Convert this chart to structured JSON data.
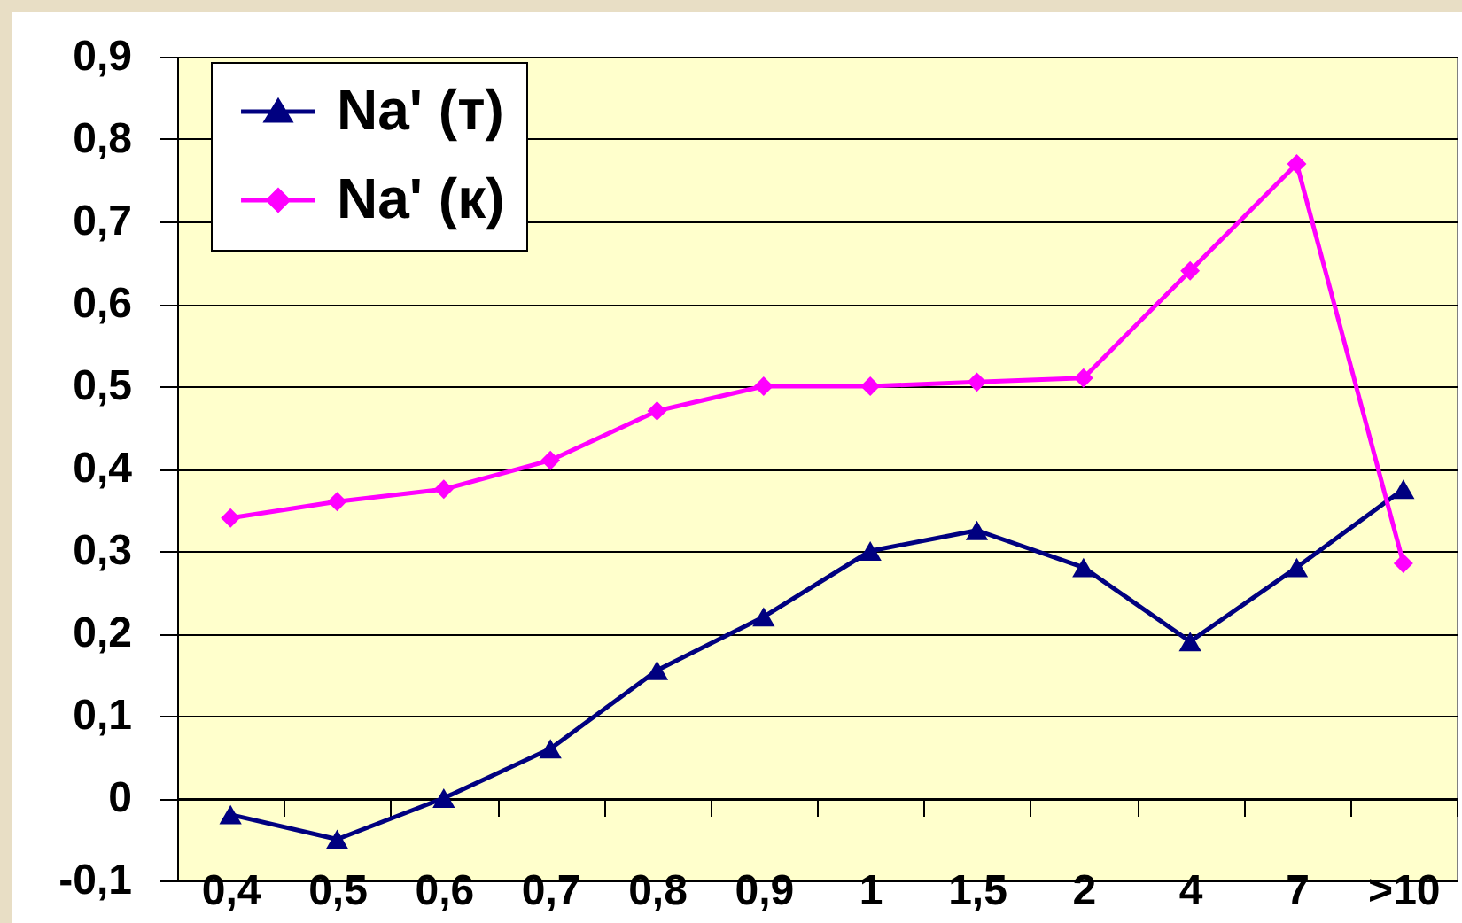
{
  "chart_data": {
    "type": "line",
    "categories": [
      "0,4",
      "0,5",
      "0,6",
      "0,7",
      "0,8",
      "0,9",
      "1",
      "1,5",
      "2",
      "4",
      "7",
      ">10"
    ],
    "series": [
      {
        "name": "Na' (т)",
        "color": "#000080",
        "marker": "triangle",
        "values": [
          -0.02,
          -0.05,
          0.0,
          0.06,
          0.155,
          0.22,
          0.3,
          0.325,
          0.28,
          0.19,
          0.28,
          0.375
        ]
      },
      {
        "name": "Na' (к)",
        "color": "#ff00ff",
        "marker": "diamond",
        "values": [
          0.34,
          0.36,
          0.375,
          0.41,
          0.47,
          0.5,
          0.5,
          0.505,
          0.51,
          0.64,
          0.77,
          0.285
        ]
      }
    ],
    "ylim": [
      -0.1,
      0.9
    ],
    "yticks": [
      {
        "value": -0.1,
        "label": "-0,1"
      },
      0,
      {
        "value": 0.1,
        "label": "0,1"
      },
      {
        "value": 0.2,
        "label": "0,2"
      },
      {
        "value": 0.3,
        "label": "0,3"
      },
      {
        "value": 0.4,
        "label": "0,4"
      },
      {
        "value": 0.5,
        "label": "0,5"
      },
      {
        "value": 0.6,
        "label": "0,6"
      },
      {
        "value": 0.7,
        "label": "0,7"
      },
      {
        "value": 0.8,
        "label": "0,8"
      },
      {
        "value": 0.9,
        "label": "0,9"
      }
    ],
    "grid": "y",
    "legend": "top left"
  }
}
